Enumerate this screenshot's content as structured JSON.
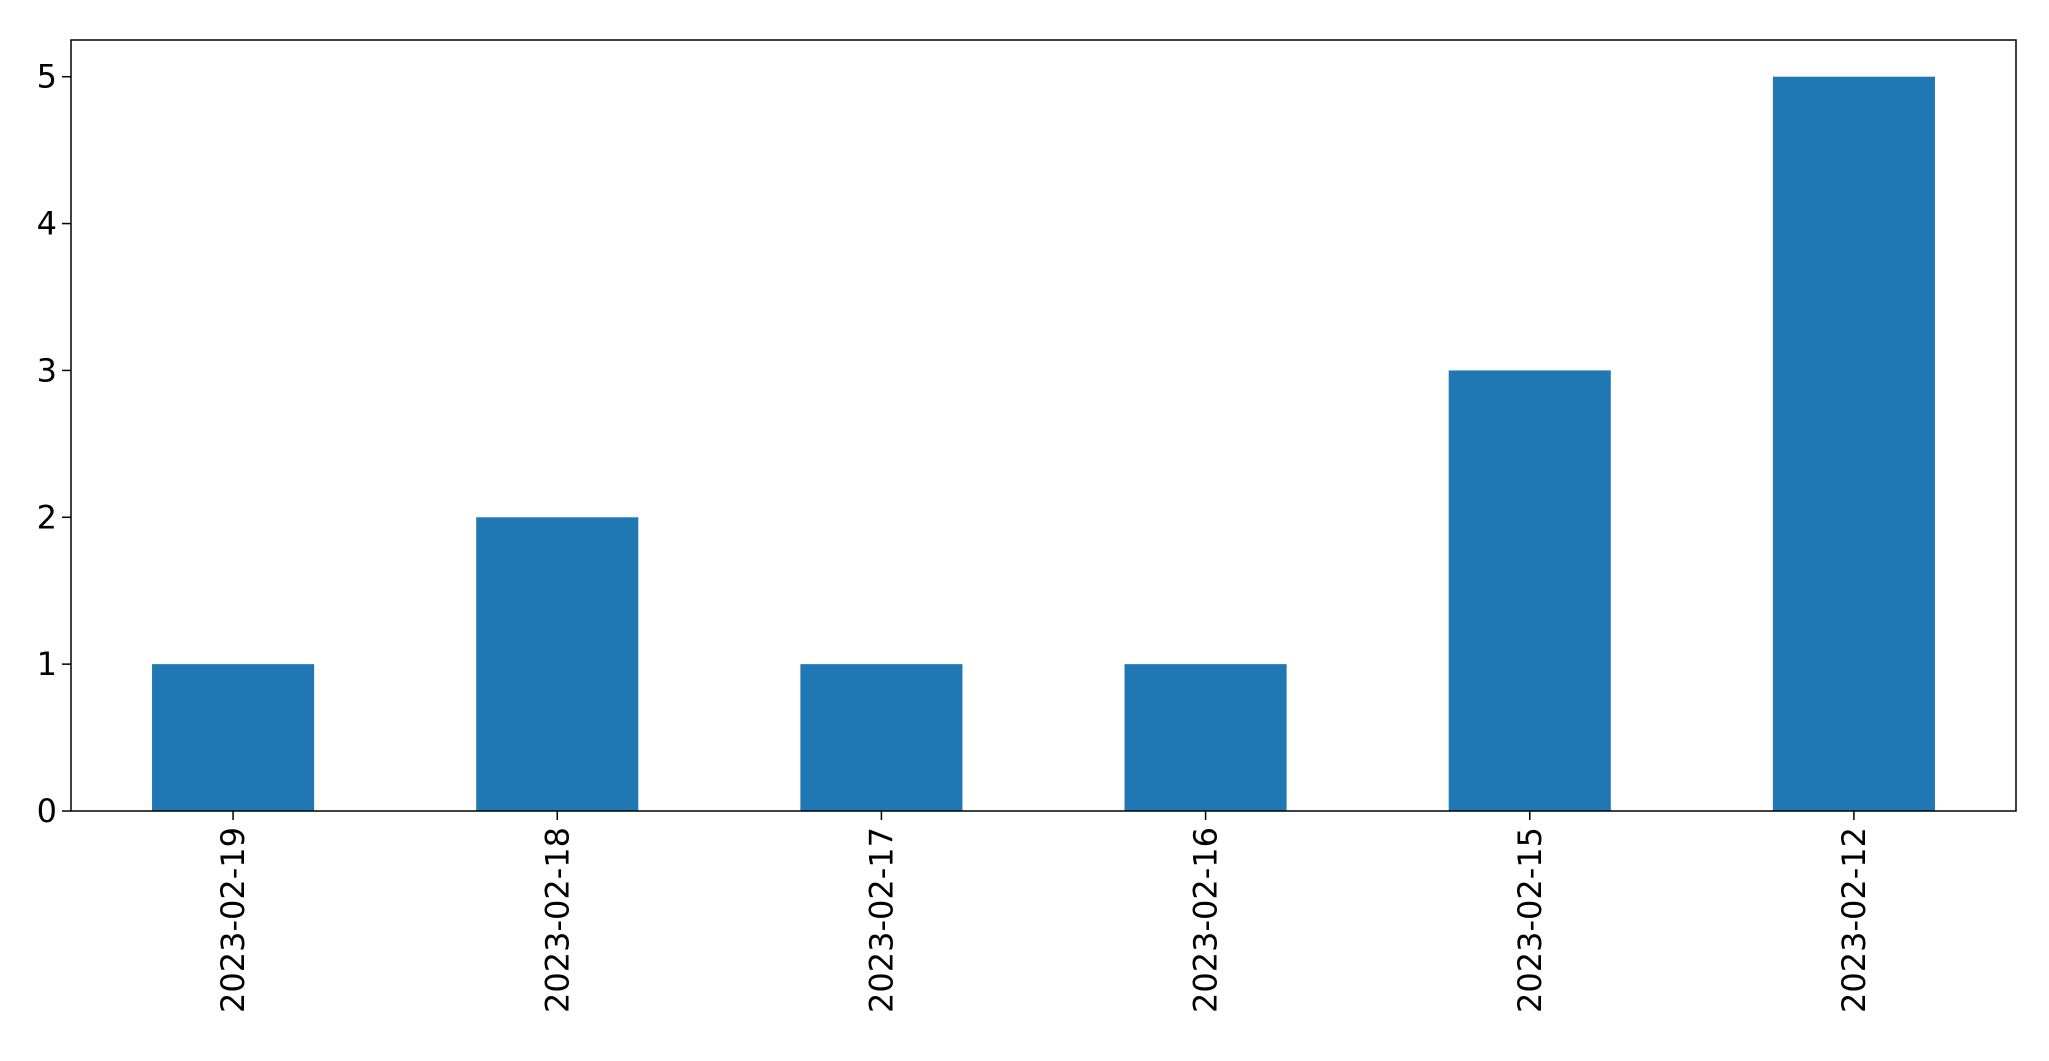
{
  "chart_data": {
    "type": "bar",
    "categories": [
      "2023-02-19",
      "2023-02-18",
      "2023-02-17",
      "2023-02-16",
      "2023-02-15",
      "2023-02-12"
    ],
    "values": [
      1,
      2,
      1,
      1,
      3,
      5
    ],
    "title": "",
    "xlabel": "",
    "ylabel": "",
    "ylim": [
      0,
      5.25
    ],
    "yticks": [
      0,
      1,
      2,
      3,
      4,
      5
    ],
    "grid": false,
    "legend": "none",
    "x_tick_rotation": "vertical",
    "bar_color": "#1f77b4"
  }
}
